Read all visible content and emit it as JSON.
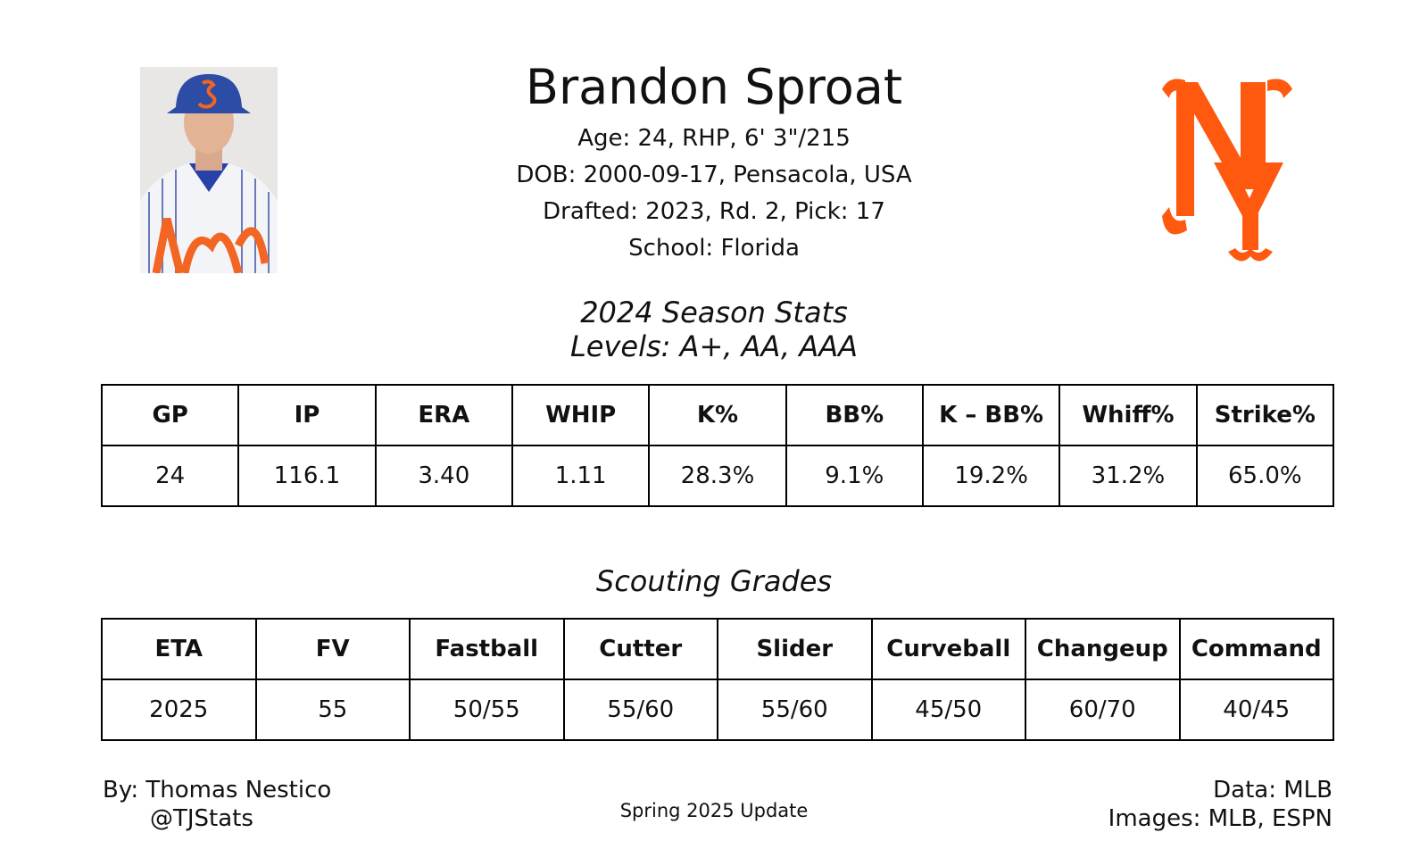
{
  "header": {
    "name": "Brandon Sproat",
    "bio": [
      "Age: 24, RHP, 6' 3\"/215",
      "DOB: 2000-09-17, Pensacola, USA",
      "Drafted: 2023, Rd. 2, Pick: 17",
      "School: Florida"
    ]
  },
  "season": {
    "title": "2024 Season Stats",
    "levels": "Levels: A+, AA, AAA",
    "table": {
      "headers": [
        "GP",
        "IP",
        "ERA",
        "WHIP",
        "K%",
        "BB%",
        "K – BB%",
        "Whiff%",
        "Strike%"
      ],
      "rows": [
        [
          "24",
          "116.1",
          "3.40",
          "1.11",
          "28.3%",
          "9.1%",
          "19.2%",
          "31.2%",
          "65.0%"
        ]
      ]
    }
  },
  "scouting": {
    "title": "Scouting Grades",
    "table": {
      "headers": [
        "ETA",
        "FV",
        "Fastball",
        "Cutter",
        "Slider",
        "Curveball",
        "Changeup",
        "Command"
      ],
      "rows": [
        [
          "2025",
          "55",
          "50/55",
          "55/60",
          "55/60",
          "45/50",
          "60/70",
          "40/45"
        ]
      ]
    }
  },
  "footer": {
    "author": "By: Thomas Nestico",
    "handle": "@TJStats",
    "update": "Spring 2025 Update",
    "data_source": "Data: MLB",
    "image_source": "Images: MLB, ESPN"
  }
}
